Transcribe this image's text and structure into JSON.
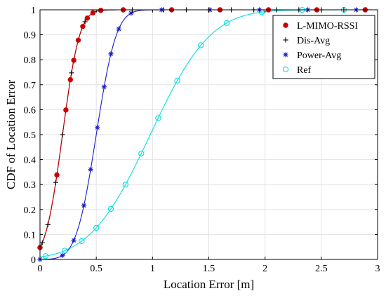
{
  "chart_data": {
    "type": "line",
    "title": "",
    "xlabel": "Location Error [m]",
    "ylabel": "CDF of Location Error",
    "xlim": [
      0,
      3
    ],
    "ylim": [
      0,
      1
    ],
    "xticks": [
      0,
      0.5,
      1,
      1.5,
      2,
      2.5,
      3
    ],
    "xtick_labels": [
      "0",
      "0.5",
      "1",
      "1.5",
      "2",
      "2.5",
      "3"
    ],
    "yticks": [
      0,
      0.1,
      0.2,
      0.3,
      0.4,
      0.5,
      0.6,
      0.7,
      0.8,
      0.9,
      1
    ],
    "ytick_labels": [
      "0",
      "0.1",
      "0.2",
      "0.3",
      "0.4",
      "0.5",
      "0.6",
      "0.7",
      "0.8",
      "0.9",
      "1"
    ],
    "grid": true,
    "legend_position": "top-right",
    "series": [
      {
        "name": "L-MIMO-RSSI",
        "color": "#cc0000",
        "marker": "filled-circle",
        "curve": {
          "median": 0.2,
          "sigma": 0.12
        },
        "markers_x": [
          0,
          0.15,
          0.23,
          0.27,
          0.3,
          0.34,
          0.38,
          0.42,
          0.47,
          0.54,
          0.74,
          1.17,
          1.6,
          2.03,
          2.46,
          2.89
        ]
      },
      {
        "name": "Dis-Avg",
        "color": "#000000",
        "marker": "plus",
        "curve": {
          "median": 0.2,
          "sigma": 0.12
        },
        "markers_x": [
          0,
          0.02,
          0.07,
          0.14,
          0.2,
          0.28,
          0.4,
          0.55,
          0.82,
          1.1,
          1.3,
          1.5,
          1.7,
          1.9,
          2.1,
          2.3,
          2.5,
          2.7,
          2.9
        ]
      },
      {
        "name": "Power-Avg",
        "color": "#1a1acc",
        "marker": "asterisk",
        "curve": {
          "median": 0.5,
          "sigma": 0.14
        },
        "markers_x": [
          0,
          0.2,
          0.3,
          0.39,
          0.45,
          0.51,
          0.57,
          0.63,
          0.7,
          0.81,
          1.08,
          1.51,
          1.95,
          2.38,
          2.81
        ]
      },
      {
        "name": "Ref",
        "color": "#00e0e0",
        "marker": "open-circle",
        "curve": {
          "median": 0.98,
          "sigma": 0.42
        },
        "markers_x": [
          0.05,
          0.22,
          0.37,
          0.5,
          0.63,
          0.76,
          0.9,
          1.05,
          1.22,
          1.43,
          1.66,
          1.97,
          2.33,
          2.7
        ]
      }
    ]
  }
}
